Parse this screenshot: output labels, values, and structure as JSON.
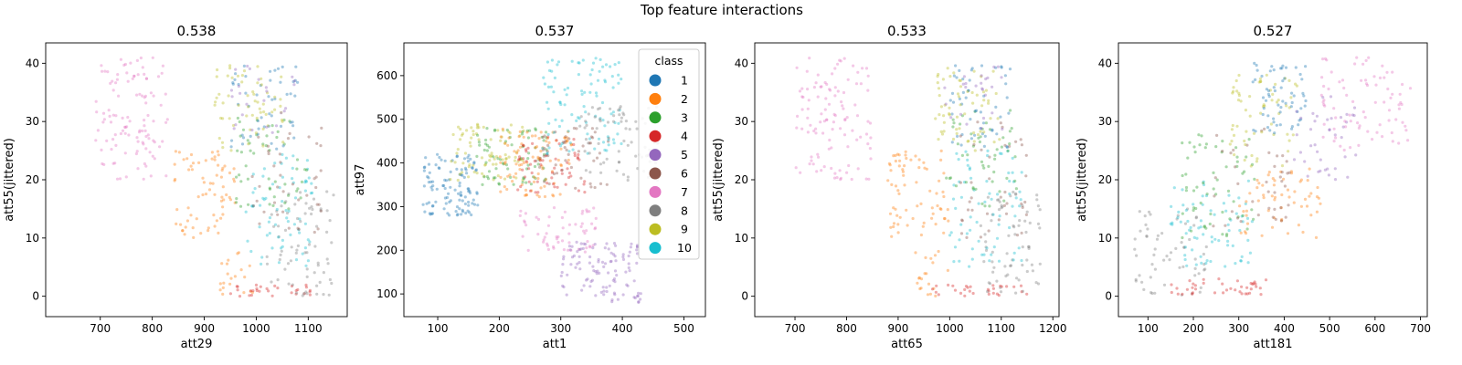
{
  "figure": {
    "title": "Top feature interactions",
    "class_colors": {
      "1": "#1f77b4",
      "2": "#ff7f0e",
      "3": "#2ca02c",
      "4": "#d62728",
      "5": "#9467bd",
      "6": "#8c564b",
      "7": "#e377c2",
      "8": "#7f7f7f",
      "9": "#bcbd22",
      "10": "#17becf"
    },
    "legend": {
      "title": "class",
      "entries": [
        "1",
        "2",
        "3",
        "4",
        "5",
        "6",
        "7",
        "8",
        "9",
        "10"
      ],
      "placement": "upper-right of panel 2"
    }
  },
  "chart_data": [
    {
      "type": "scatter",
      "title": "0.538",
      "xlabel": "att29",
      "ylabel": "att55(jittered)",
      "xlim": [
        595,
        1175
      ],
      "ylim": [
        -3.5,
        43.5
      ],
      "xticks": [
        700,
        800,
        900,
        1000,
        1100
      ],
      "yticks": [
        0,
        10,
        20,
        30,
        40
      ],
      "clusters": [
        {
          "class": 7,
          "x": [
            690,
            830
          ],
          "y": [
            20,
            41
          ],
          "n": 110
        },
        {
          "class": 2,
          "x": [
            840,
            960
          ],
          "y": [
            10,
            25
          ],
          "n": 70
        },
        {
          "class": 2,
          "x": [
            930,
            1000
          ],
          "y": [
            0,
            8
          ],
          "n": 20
        },
        {
          "class": 4,
          "x": [
            940,
            1110
          ],
          "y": [
            0,
            2
          ],
          "n": 30
        },
        {
          "class": 8,
          "x": [
            1020,
            1150
          ],
          "y": [
            0,
            18
          ],
          "n": 70
        },
        {
          "class": 10,
          "x": [
            980,
            1110
          ],
          "y": [
            5,
            25
          ],
          "n": 70
        },
        {
          "class": 3,
          "x": [
            960,
            1100
          ],
          "y": [
            15,
            32
          ],
          "n": 50
        },
        {
          "class": 1,
          "x": [
            950,
            1080
          ],
          "y": [
            25,
            40
          ],
          "n": 50
        },
        {
          "class": 9,
          "x": [
            920,
            1060
          ],
          "y": [
            25,
            40
          ],
          "n": 60
        },
        {
          "class": 6,
          "x": [
            980,
            1130
          ],
          "y": [
            10,
            30
          ],
          "n": 40
        },
        {
          "class": 5,
          "x": [
            950,
            1080
          ],
          "y": [
            28,
            40
          ],
          "n": 25
        }
      ]
    },
    {
      "type": "scatter",
      "title": "0.537",
      "xlabel": "att1",
      "ylabel": "att97",
      "xlim": [
        45,
        535
      ],
      "ylim": [
        48,
        675
      ],
      "xticks": [
        100,
        200,
        300,
        400,
        500
      ],
      "yticks": [
        100,
        200,
        300,
        400,
        500,
        600
      ],
      "clusters": [
        {
          "class": 1,
          "x": [
            75,
            165
          ],
          "y": [
            280,
            420
          ],
          "n": 110
        },
        {
          "class": 9,
          "x": [
            120,
            240
          ],
          "y": [
            360,
            500
          ],
          "n": 80
        },
        {
          "class": 3,
          "x": [
            160,
            280
          ],
          "y": [
            350,
            480
          ],
          "n": 70
        },
        {
          "class": 2,
          "x": [
            200,
            320
          ],
          "y": [
            320,
            480
          ],
          "n": 90
        },
        {
          "class": 4,
          "x": [
            230,
            340
          ],
          "y": [
            320,
            460
          ],
          "n": 60
        },
        {
          "class": 6,
          "x": [
            260,
            380
          ],
          "y": [
            340,
            480
          ],
          "n": 50
        },
        {
          "class": 10,
          "x": [
            270,
            400
          ],
          "y": [
            420,
            640
          ],
          "n": 100
        },
        {
          "class": 8,
          "x": [
            330,
            460
          ],
          "y": [
            360,
            530
          ],
          "n": 80
        },
        {
          "class": 7,
          "x": [
            230,
            360
          ],
          "y": [
            190,
            300
          ],
          "n": 60
        },
        {
          "class": 5,
          "x": [
            300,
            430
          ],
          "y": [
            80,
            220
          ],
          "n": 110
        }
      ]
    },
    {
      "type": "scatter",
      "title": "0.533",
      "xlabel": "att65",
      "ylabel": "att55(jittered)",
      "xlim": [
        622,
        1212
      ],
      "ylim": [
        -3.5,
        43.5
      ],
      "xticks": [
        700,
        800,
        900,
        1000,
        1100,
        1200
      ],
      "yticks": [
        0,
        10,
        20,
        30,
        40
      ],
      "clusters": [
        {
          "class": 7,
          "x": [
            700,
            850
          ],
          "y": [
            20,
            41
          ],
          "n": 110
        },
        {
          "class": 2,
          "x": [
            880,
            1000
          ],
          "y": [
            10,
            25
          ],
          "n": 70
        },
        {
          "class": 2,
          "x": [
            930,
            1000
          ],
          "y": [
            0,
            8
          ],
          "n": 20
        },
        {
          "class": 4,
          "x": [
            960,
            1150
          ],
          "y": [
            0,
            2
          ],
          "n": 30
        },
        {
          "class": 8,
          "x": [
            1060,
            1180
          ],
          "y": [
            0,
            18
          ],
          "n": 70
        },
        {
          "class": 10,
          "x": [
            1000,
            1140
          ],
          "y": [
            5,
            25
          ],
          "n": 70
        },
        {
          "class": 3,
          "x": [
            990,
            1130
          ],
          "y": [
            15,
            32
          ],
          "n": 50
        },
        {
          "class": 1,
          "x": [
            1000,
            1120
          ],
          "y": [
            25,
            40
          ],
          "n": 50
        },
        {
          "class": 9,
          "x": [
            970,
            1100
          ],
          "y": [
            25,
            40
          ],
          "n": 60
        },
        {
          "class": 6,
          "x": [
            1020,
            1150
          ],
          "y": [
            10,
            30
          ],
          "n": 40
        },
        {
          "class": 5,
          "x": [
            990,
            1110
          ],
          "y": [
            28,
            40
          ],
          "n": 25
        }
      ]
    },
    {
      "type": "scatter",
      "title": "0.527",
      "xlabel": "att181",
      "ylabel": "att55(jittered)",
      "xlim": [
        35,
        715
      ],
      "ylim": [
        -3.5,
        43.5
      ],
      "xticks": [
        100,
        200,
        300,
        400,
        500,
        600,
        700
      ],
      "yticks": [
        0,
        10,
        20,
        30,
        40
      ],
      "clusters": [
        {
          "class": 8,
          "x": [
            70,
            230
          ],
          "y": [
            0,
            15
          ],
          "n": 60
        },
        {
          "class": 4,
          "x": [
            150,
            360
          ],
          "y": [
            0,
            3
          ],
          "n": 40
        },
        {
          "class": 10,
          "x": [
            150,
            330
          ],
          "y": [
            5,
            20
          ],
          "n": 70
        },
        {
          "class": 3,
          "x": [
            170,
            340
          ],
          "y": [
            10,
            28
          ],
          "n": 60
        },
        {
          "class": 2,
          "x": [
            300,
            480
          ],
          "y": [
            10,
            22
          ],
          "n": 60
        },
        {
          "class": 6,
          "x": [
            240,
            420
          ],
          "y": [
            12,
            30
          ],
          "n": 40
        },
        {
          "class": 9,
          "x": [
            280,
            430
          ],
          "y": [
            22,
            38
          ],
          "n": 60
        },
        {
          "class": 1,
          "x": [
            330,
            450
          ],
          "y": [
            28,
            40
          ],
          "n": 60
        },
        {
          "class": 5,
          "x": [
            420,
            560
          ],
          "y": [
            20,
            35
          ],
          "n": 40
        },
        {
          "class": 7,
          "x": [
            480,
            680
          ],
          "y": [
            25,
            41
          ],
          "n": 80
        }
      ]
    }
  ]
}
